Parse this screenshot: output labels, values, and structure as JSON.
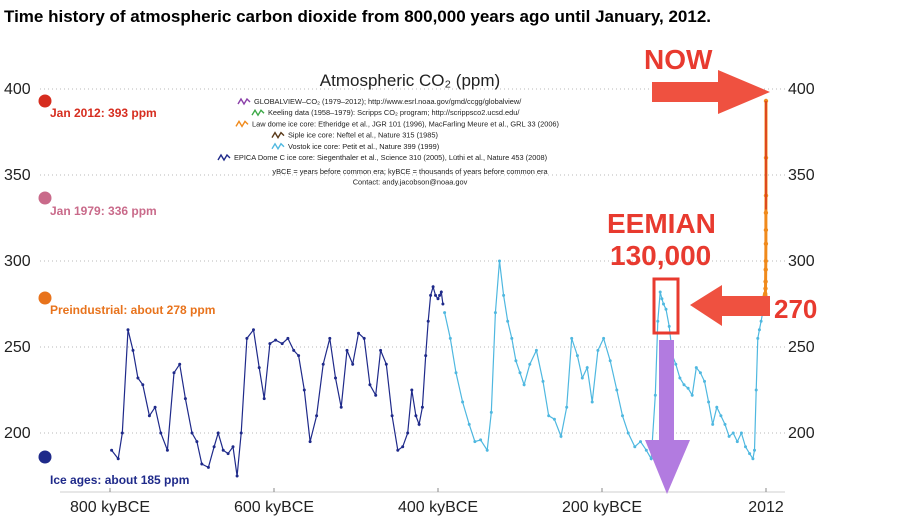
{
  "chart_data": {
    "type": "line",
    "title": "Time history of atmospheric carbon dioxide from 800,000 years ago until January, 2012.",
    "subtitle": "Atmospheric CO₂ (ppm)",
    "xlabel": "",
    "ylabel": "",
    "xlim": [
      800,
      0
    ],
    "ylim": [
      180,
      405
    ],
    "x_ticks": [
      "800 kyBCE",
      "600 kyBCE",
      "400 kyBCE",
      "200 kyBCE",
      "2012"
    ],
    "x_tick_values": [
      800,
      600,
      400,
      200,
      0
    ],
    "y_ticks": [
      200,
      250,
      300,
      350,
      400
    ],
    "legend": [
      {
        "text": "GLOBALVIEW–CO₂ (1979–2012); http://www.esrl.noaa.gov/gmd/ccgg/globalview/",
        "color": "#8a3fa8"
      },
      {
        "text": "Keeling data (1958–1979): Scripps CO₂ program; http://scrippsco2.ucsd.edu/",
        "color": "#3aa845"
      },
      {
        "text": "Law dome ice core:  Etheridge et al., JGR 101 (1996), MacFarling Meure et al., GRL 33 (2006)",
        "color": "#f08a1c"
      },
      {
        "text": "Siple ice core:  Neftel et al., Nature 315 (1985)",
        "color": "#5a3a1a"
      },
      {
        "text": "Vostok ice core:  Petit et al., Nature 399 (1999)",
        "color": "#4fb8e0"
      },
      {
        "text": "EPICA Dome C ice core:  Siegenthaler et al., Science 310 (2005), Lüthi et al., Nature 453 (2008)",
        "color": "#1f2a8a"
      }
    ],
    "legend_notes": [
      "yBCE = years before common era; kyBCE = thousands of years before common era",
      "Contact: andy.jacobson@noaa.gov"
    ],
    "legend_position": "top-center",
    "reference_levels": [
      {
        "label": "Jan 2012: 393 ppm",
        "value": 393,
        "color": "#d62d1f"
      },
      {
        "label": "Jan 1979: 336 ppm",
        "value": 336,
        "color": "#c96a8a"
      },
      {
        "label": "Preindustrial: about 278 ppm",
        "value": 278,
        "color": "#e8731c"
      },
      {
        "label": "Ice ages: about 185 ppm",
        "value": 185,
        "color": "#1f2a8a"
      }
    ],
    "annotations": [
      {
        "text": "NOW",
        "color": "#e83a2f"
      },
      {
        "text": "EEMIAN",
        "color": "#e83a2f"
      },
      {
        "text": "130,000",
        "color": "#e83a2f"
      },
      {
        "text": "270",
        "color": "#e83a2f"
      }
    ],
    "series": [
      {
        "name": "EPICA Dome C ice core",
        "color": "#1f2a8a",
        "x": [
          798,
          790,
          785,
          778,
          772,
          766,
          760,
          752,
          745,
          738,
          730,
          722,
          715,
          708,
          700,
          694,
          688,
          680,
          673,
          668,
          662,
          656,
          650,
          645,
          640,
          633,
          625,
          618,
          612,
          605,
          598,
          590,
          583,
          576,
          570,
          563,
          556,
          548,
          540,
          532,
          525,
          518,
          511,
          504,
          497,
          490,
          483,
          476,
          470,
          463,
          456,
          449,
          443,
          437,
          432,
          427,
          423,
          419,
          415,
          412,
          409,
          406,
          403,
          400,
          398,
          396,
          394
        ],
        "y": [
          190,
          185,
          200,
          260,
          248,
          232,
          228,
          210,
          215,
          200,
          190,
          235,
          240,
          220,
          200,
          195,
          182,
          180,
          192,
          200,
          190,
          188,
          192,
          175,
          200,
          255,
          260,
          238,
          220,
          252,
          254,
          252,
          255,
          248,
          245,
          225,
          195,
          210,
          240,
          255,
          232,
          215,
          248,
          240,
          258,
          255,
          228,
          222,
          248,
          240,
          210,
          190,
          192,
          200,
          225,
          210,
          205,
          215,
          245,
          265,
          280,
          285,
          280,
          278,
          280,
          282,
          275
        ]
      },
      {
        "name": "Vostok ice core",
        "color": "#4fb8e0",
        "x": [
          392,
          385,
          378,
          370,
          362,
          355,
          348,
          340,
          335,
          330,
          325,
          320,
          315,
          310,
          305,
          300,
          295,
          288,
          280,
          272,
          265,
          258,
          250,
          243,
          237,
          230,
          224,
          218,
          212,
          205,
          198,
          190,
          182,
          175,
          168,
          160,
          153,
          146,
          140,
          135,
          132,
          129,
          127,
          125,
          122,
          118,
          114,
          110,
          105,
          100,
          95,
          90,
          85,
          80,
          75,
          70,
          65,
          60,
          55,
          50,
          45,
          40,
          35,
          30,
          25,
          20,
          16,
          14,
          12,
          10,
          8,
          6,
          4
        ],
        "y": [
          270,
          255,
          235,
          218,
          205,
          195,
          196,
          190,
          212,
          270,
          300,
          280,
          265,
          255,
          242,
          235,
          228,
          240,
          248,
          230,
          210,
          208,
          198,
          215,
          255,
          245,
          232,
          238,
          218,
          248,
          255,
          242,
          225,
          210,
          200,
          192,
          195,
          190,
          185,
          222,
          265,
          282,
          278,
          275,
          272,
          262,
          245,
          240,
          232,
          228,
          226,
          222,
          238,
          235,
          230,
          218,
          205,
          215,
          210,
          205,
          198,
          200,
          195,
          200,
          192,
          188,
          185,
          190,
          225,
          255,
          260,
          265,
          270
        ]
      },
      {
        "name": "Law dome / Keeling / GLOBALVIEW",
        "color": "#f08a1c",
        "x": [
          3,
          2.5,
          2,
          1.5,
          1.2,
          1.0,
          0.8,
          0.6,
          0.45,
          0.35,
          0.25,
          0.18,
          0.12,
          0.08,
          0.05,
          0.03,
          0.01
        ],
        "y": [
          272,
          275,
          278,
          280,
          279,
          281,
          280,
          284,
          288,
          295,
          300,
          310,
          318,
          328,
          338,
          360,
          393
        ]
      }
    ]
  }
}
